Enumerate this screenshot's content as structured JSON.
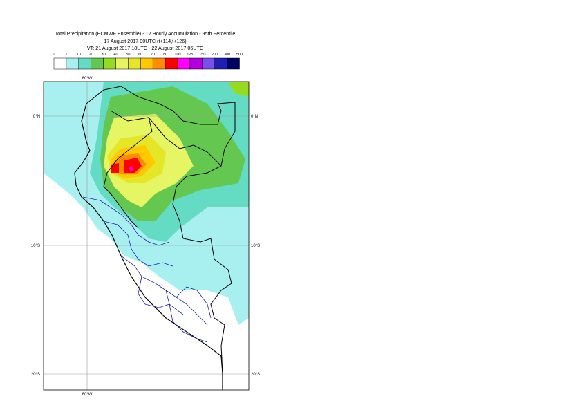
{
  "title": {
    "line1": "Total Precipitation (ECMWF Ensemble) - 12 Hourly Accumulation - 95th Percentile",
    "line2": "17 August 2017 00UTC (t+114,t+126)",
    "line3": "VT: 21 August 2017 18UTC - 22 August 2017 06UTC"
  },
  "legend": {
    "ticks": [
      "0",
      "1",
      "10",
      "20",
      "30",
      "40",
      "50",
      "60",
      "70",
      "80",
      "100",
      "125",
      "150",
      "200",
      "300",
      "500"
    ],
    "colors": [
      "#ffffff",
      "#a8f0f0",
      "#64dcc4",
      "#64c850",
      "#96dc1e",
      "#e6f564",
      "#e6e628",
      "#ffc800",
      "#ff8c00",
      "#ff0000",
      "#ff00ff",
      "#b400dc",
      "#7850f0",
      "#1e1eb4",
      "#000064"
    ]
  },
  "map": {
    "lon_labels": [
      "80°W",
      "80°W"
    ],
    "lat_labels": {
      "eq": "0°N",
      "s10": "10°S",
      "s20": "20°S"
    }
  }
}
